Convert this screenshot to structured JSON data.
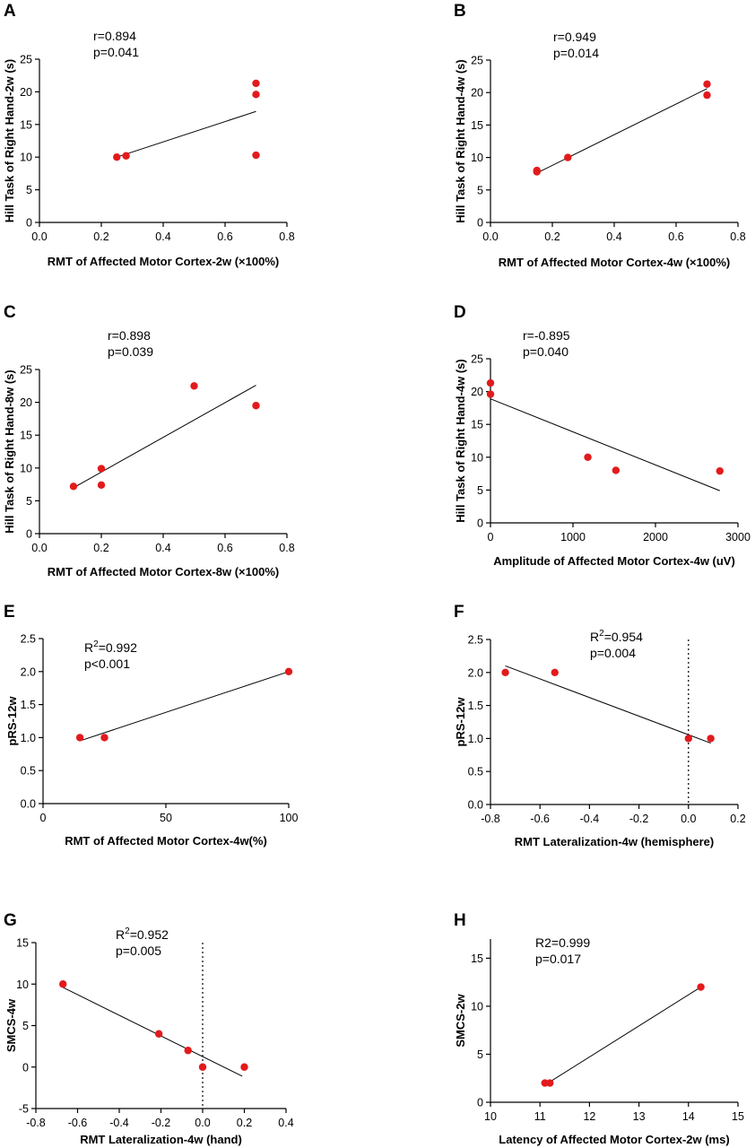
{
  "chart_data": [
    {
      "panel": "A",
      "type": "scatter",
      "xlabel": "RMT of Affected Motor Cortex-2w (×100%)",
      "ylabel": "Hill Task of Right Hand-2w (s)",
      "annotations": [
        "r=0.894",
        "p=0.041"
      ],
      "xlim": [
        0,
        0.8
      ],
      "ylim": [
        0,
        25
      ],
      "xticks": [
        0.0,
        0.2,
        0.4,
        0.6,
        0.8
      ],
      "xtick_labels": [
        "0.0",
        "0.2",
        "0.4",
        "0.6",
        "0.8"
      ],
      "yticks": [
        0,
        5,
        10,
        15,
        20,
        25
      ],
      "ytick_labels": [
        "0",
        "5",
        "10",
        "15",
        "20",
        "25"
      ],
      "points": [
        [
          0.25,
          10.0
        ],
        [
          0.28,
          10.2
        ],
        [
          0.7,
          10.3
        ],
        [
          0.7,
          19.6
        ],
        [
          0.7,
          21.3
        ]
      ],
      "fit_line": [
        [
          0.25,
          10.0
        ],
        [
          0.7,
          17.0
        ]
      ]
    },
    {
      "panel": "B",
      "type": "scatter",
      "xlabel": "RMT of Affected Motor Cortex-4w (×100%)",
      "ylabel": "Hill Task of Right Hand-4w (s)",
      "annotations": [
        "r=0.949",
        "p=0.014"
      ],
      "xlim": [
        0,
        0.8
      ],
      "ylim": [
        0,
        25
      ],
      "xticks": [
        0.0,
        0.2,
        0.4,
        0.6,
        0.8
      ],
      "xtick_labels": [
        "0.0",
        "0.2",
        "0.4",
        "0.6",
        "0.8"
      ],
      "yticks": [
        0,
        5,
        10,
        15,
        20,
        25
      ],
      "ytick_labels": [
        "0",
        "5",
        "10",
        "15",
        "20",
        "25"
      ],
      "points": [
        [
          0.15,
          7.8
        ],
        [
          0.15,
          8.0
        ],
        [
          0.25,
          10.0
        ],
        [
          0.7,
          19.6
        ],
        [
          0.7,
          21.3
        ]
      ],
      "fit_line": [
        [
          0.15,
          7.6
        ],
        [
          0.7,
          20.6
        ]
      ]
    },
    {
      "panel": "C",
      "type": "scatter",
      "xlabel": "RMT of Affected Motor Cortex-8w (×100%)",
      "ylabel": "Hill Task of Right Hand-8w (s)",
      "annotations": [
        "r=0.898",
        "p=0.039"
      ],
      "xlim": [
        0,
        0.8
      ],
      "ylim": [
        0,
        25
      ],
      "xticks": [
        0.0,
        0.2,
        0.4,
        0.6,
        0.8
      ],
      "xtick_labels": [
        "0.0",
        "0.2",
        "0.4",
        "0.6",
        "0.8"
      ],
      "yticks": [
        0,
        5,
        10,
        15,
        20,
        25
      ],
      "ytick_labels": [
        "0",
        "5",
        "10",
        "15",
        "20",
        "25"
      ],
      "points": [
        [
          0.11,
          7.2
        ],
        [
          0.2,
          7.4
        ],
        [
          0.2,
          9.9
        ],
        [
          0.5,
          22.5
        ],
        [
          0.7,
          19.5
        ]
      ],
      "fit_line": [
        [
          0.11,
          7.0
        ],
        [
          0.7,
          22.6
        ]
      ]
    },
    {
      "panel": "D",
      "type": "scatter",
      "xlabel": "Amplitude of Affected Motor Cortex-4w (uV)",
      "ylabel": "Hill Task of Right Hand-4w (s)",
      "annotations": [
        "r=-0.895",
        "p=0.040"
      ],
      "xlim": [
        0,
        3000
      ],
      "ylim": [
        0,
        25
      ],
      "xticks": [
        0,
        1000,
        2000,
        3000
      ],
      "xtick_labels": [
        "0",
        "1000",
        "2000",
        "3000"
      ],
      "yticks": [
        0,
        5,
        10,
        15,
        20,
        25
      ],
      "ytick_labels": [
        "0",
        "5",
        "10",
        "15",
        "20",
        "25"
      ],
      "points": [
        [
          0,
          19.6
        ],
        [
          0,
          21.3
        ],
        [
          1180,
          10.0
        ],
        [
          1520,
          8.0
        ],
        [
          2780,
          7.9
        ]
      ],
      "fit_line": [
        [
          0,
          18.9
        ],
        [
          2780,
          4.9
        ]
      ]
    },
    {
      "panel": "E",
      "type": "scatter",
      "xlabel": "RMT of Affected Motor Cortex-4w(%)",
      "ylabel": "pRS-12w",
      "annotations": [
        "R2=0.992",
        "p<0.001"
      ],
      "annotation_parts": [
        {
          "pre": "R",
          "sup": "2",
          "post": "=0.992"
        },
        {
          "pre": "p<0.001",
          "sup": "",
          "post": ""
        }
      ],
      "xlim": [
        0,
        100
      ],
      "ylim": [
        0,
        2.5
      ],
      "xticks": [
        0,
        50,
        100
      ],
      "xtick_labels": [
        "0",
        "50",
        "100"
      ],
      "yticks": [
        0,
        0.5,
        1.0,
        1.5,
        2.0,
        2.5
      ],
      "ytick_labels": [
        "0.0",
        "0.5",
        "1.0",
        "1.5",
        "2.0",
        "2.5"
      ],
      "points": [
        [
          15,
          1.0
        ],
        [
          25,
          1.0
        ],
        [
          100,
          2.0
        ]
      ],
      "fit_line": [
        [
          15,
          0.95
        ],
        [
          100,
          2.0
        ]
      ]
    },
    {
      "panel": "F",
      "type": "scatter",
      "xlabel": "RMT Lateralization-4w (hemisphere)",
      "ylabel": "pRS-12w",
      "annotations": [
        "R2=0.954",
        "p=0.004"
      ],
      "annotation_parts": [
        {
          "pre": "R",
          "sup": "2",
          "post": "=0.954"
        },
        {
          "pre": "p=0.004",
          "sup": "",
          "post": ""
        }
      ],
      "xlim": [
        -0.8,
        0.2
      ],
      "ylim": [
        0,
        2.5
      ],
      "xticks": [
        -0.8,
        -0.6,
        -0.4,
        -0.2,
        0.0,
        0.2
      ],
      "xtick_labels": [
        "-0.8",
        "-0.6",
        "-0.4",
        "-0.2",
        "0.0",
        "0.2"
      ],
      "yticks": [
        0,
        0.5,
        1.0,
        1.5,
        2.0,
        2.5
      ],
      "ytick_labels": [
        "0.0",
        "0.5",
        "1.0",
        "1.5",
        "2.0",
        "2.5"
      ],
      "points": [
        [
          -0.74,
          2.0
        ],
        [
          -0.54,
          2.0
        ],
        [
          0.0,
          1.0
        ],
        [
          0.09,
          1.0
        ]
      ],
      "fit_line": [
        [
          -0.74,
          2.1
        ],
        [
          0.09,
          0.93
        ]
      ],
      "reference_line_x": 0
    },
    {
      "panel": "G",
      "type": "scatter",
      "xlabel": "RMT Lateralization-4w (hand)",
      "ylabel": "SMCS-4w",
      "annotations": [
        "R2=0.952",
        "p=0.005"
      ],
      "annotation_parts": [
        {
          "pre": "R",
          "sup": "2",
          "post": "=0.952"
        },
        {
          "pre": "p=0.005",
          "sup": "",
          "post": ""
        }
      ],
      "xlim": [
        -0.8,
        0.4
      ],
      "ylim": [
        -5,
        15
      ],
      "xticks": [
        -0.8,
        -0.6,
        -0.4,
        -0.2,
        0.0,
        0.2,
        0.4
      ],
      "xtick_labels": [
        "-0.8",
        "-0.6",
        "-0.4",
        "-0.2",
        "0.0",
        "0.2",
        "0.4"
      ],
      "yticks": [
        -5,
        0,
        5,
        10,
        15
      ],
      "ytick_labels": [
        "-5",
        "0",
        "5",
        "10",
        "15"
      ],
      "points": [
        [
          -0.67,
          10.0
        ],
        [
          -0.21,
          4.0
        ],
        [
          -0.07,
          2.0
        ],
        [
          0.0,
          0.0
        ],
        [
          0.2,
          0.0
        ]
      ],
      "fit_line": [
        [
          -0.67,
          9.6
        ],
        [
          0.19,
          -1.1
        ]
      ],
      "reference_line_x": 0
    },
    {
      "panel": "H",
      "type": "scatter",
      "xlabel": "Latency of Affected Motor Cortex-2w (ms)",
      "ylabel": "SMCS-2w",
      "annotations": [
        "R2=0.999",
        "p=0.017"
      ],
      "xlim": [
        10,
        15
      ],
      "ylim": [
        0,
        17
      ],
      "xticks": [
        10,
        11,
        12,
        13,
        14,
        15
      ],
      "xtick_labels": [
        "10",
        "11",
        "12",
        "13",
        "14",
        "15"
      ],
      "yticks": [
        0,
        5,
        10,
        15
      ],
      "ytick_labels": [
        "0",
        "5",
        "10",
        "15"
      ],
      "points": [
        [
          11.1,
          2.0
        ],
        [
          11.2,
          2.0
        ],
        [
          14.25,
          12.0
        ]
      ],
      "fit_line": [
        [
          11.1,
          1.8
        ],
        [
          14.25,
          12.0
        ]
      ]
    }
  ]
}
